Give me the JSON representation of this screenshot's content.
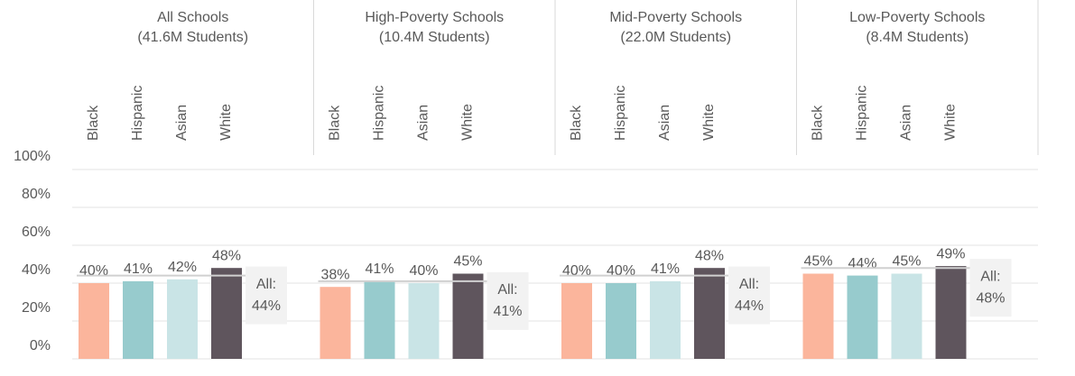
{
  "chart_data": {
    "type": "bar",
    "categories": [
      "Black",
      "Hispanic",
      "Asian",
      "White"
    ],
    "colors": [
      "#fbb59c",
      "#97cbcd",
      "#c9e4e6",
      "#5f555d"
    ],
    "reference_prefix": "All:",
    "groups": [
      {
        "title": "All Schools",
        "subtitle": "(41.6M Students)",
        "values": [
          40,
          41,
          42,
          48
        ],
        "value_labels": [
          "40%",
          "41%",
          "42%",
          "48%"
        ],
        "overall": 44,
        "overall_label": "44%"
      },
      {
        "title": "High-Poverty Schools",
        "subtitle": "(10.4M Students)",
        "values": [
          38,
          41,
          40,
          45
        ],
        "value_labels": [
          "38%",
          "41%",
          "40%",
          "45%"
        ],
        "overall": 41,
        "overall_label": "41%"
      },
      {
        "title": "Mid-Poverty Schools",
        "subtitle": "(22.0M Students)",
        "values": [
          40,
          40,
          41,
          48
        ],
        "value_labels": [
          "40%",
          "40%",
          "41%",
          "48%"
        ],
        "overall": 44,
        "overall_label": "44%"
      },
      {
        "title": "Low-Poverty Schools",
        "subtitle": "(8.4M Students)",
        "values": [
          45,
          44,
          45,
          49
        ],
        "value_labels": [
          "45%",
          "44%",
          "45%",
          "49%"
        ],
        "overall": 48,
        "overall_label": "48%"
      }
    ],
    "ylim": [
      0,
      100
    ],
    "yticks": [
      {
        "value": 0,
        "label": "0%"
      },
      {
        "value": 20,
        "label": "20%"
      },
      {
        "value": 40,
        "label": "40%"
      },
      {
        "value": 60,
        "label": "60%"
      },
      {
        "value": 80,
        "label": "80%"
      },
      {
        "value": 100,
        "label": "100%"
      }
    ],
    "grid": true
  }
}
